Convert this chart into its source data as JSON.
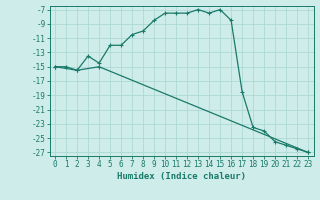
{
  "xlabel": "Humidex (Indice chaleur)",
  "bg_color": "#ceecea",
  "grid_color": "#aed8d4",
  "line_color": "#1a7a6a",
  "spine_color": "#1a7a6a",
  "xlim": [
    -0.5,
    23.5
  ],
  "ylim": [
    -27.5,
    -6.5
  ],
  "yticks": [
    -7,
    -9,
    -11,
    -13,
    -15,
    -17,
    -19,
    -21,
    -23,
    -25,
    -27
  ],
  "xticks": [
    0,
    1,
    2,
    3,
    4,
    5,
    6,
    7,
    8,
    9,
    10,
    11,
    12,
    13,
    14,
    15,
    16,
    17,
    18,
    19,
    20,
    21,
    22,
    23
  ],
  "line1_x": [
    0,
    1,
    2,
    3,
    4,
    5,
    6,
    7,
    8,
    9,
    10,
    11,
    12,
    13,
    14,
    15,
    16,
    17,
    18,
    19,
    20,
    21,
    22,
    23
  ],
  "line1_y": [
    -15,
    -15,
    -15.5,
    -13.5,
    -14.5,
    -12,
    -12,
    -10.5,
    -10,
    -8.5,
    -7.5,
    -7.5,
    -7.5,
    -7,
    -7.5,
    -7,
    -8.5,
    -18.5,
    -23.5,
    -24,
    -25.5,
    -26,
    -26.5,
    -27
  ],
  "line2_x": [
    0,
    2,
    4,
    23
  ],
  "line2_y": [
    -15,
    -15.5,
    -15,
    -27
  ],
  "tick_fontsize": 5.5,
  "xlabel_fontsize": 6.5
}
